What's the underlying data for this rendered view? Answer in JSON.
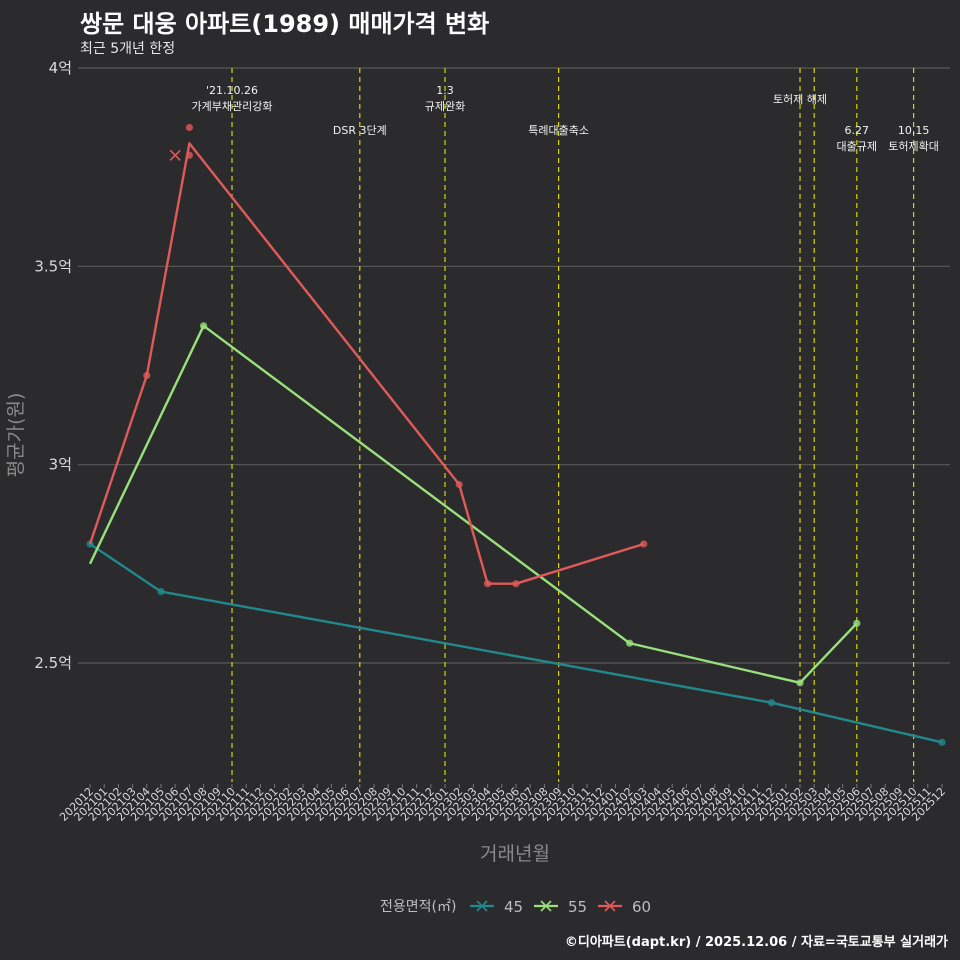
{
  "title": "쌍문 대웅 아파트(1989) 매매가격 변화",
  "subtitle": "최근 5개년 한정",
  "caption": "©디아파트(dapt.kr) / 2025.12.06 / 자료=국토교통부 실거래가",
  "chart_data": {
    "type": "line",
    "xlabel": "거래년월",
    "ylabel": "평균가(원)",
    "categories": [
      "202012",
      "202101",
      "202102",
      "202103",
      "202104",
      "202105",
      "202106",
      "202107",
      "202108",
      "202109",
      "202110",
      "202111",
      "202112",
      "202201",
      "202202",
      "202203",
      "202204",
      "202205",
      "202206",
      "202207",
      "202208",
      "202209",
      "202210",
      "202211",
      "202212",
      "202301",
      "202302",
      "202303",
      "202304",
      "202305",
      "202306",
      "202307",
      "202308",
      "202309",
      "202310",
      "202311",
      "202312",
      "202401",
      "202402",
      "202403",
      "202404",
      "202405",
      "202406",
      "202407",
      "202408",
      "202409",
      "202410",
      "202411",
      "202412",
      "202501",
      "202502",
      "202503",
      "202504",
      "202505",
      "202506",
      "202507",
      "202508",
      "202509",
      "202510",
      "202511",
      "202512"
    ],
    "ylim": [
      2.2,
      4.0
    ],
    "yticks": [
      {
        "value": 2.5,
        "label": "2.5억"
      },
      {
        "value": 3.0,
        "label": "3억"
      },
      {
        "value": 3.5,
        "label": "3.5억"
      },
      {
        "value": 4.0,
        "label": "4억"
      }
    ],
    "series": [
      {
        "name": "45",
        "color": "#21888c",
        "line": [
          [
            "202012",
            2.8
          ],
          [
            "202105",
            2.68
          ],
          [
            "202412",
            2.4
          ],
          [
            "202512",
            2.3
          ]
        ],
        "points": [
          [
            "202012",
            2.8
          ],
          [
            "202105",
            2.68
          ],
          [
            "202412",
            2.4
          ],
          [
            "202512",
            2.3
          ]
        ]
      },
      {
        "name": "55",
        "color": "#98e07a",
        "line": [
          [
            "202012",
            2.75
          ],
          [
            "202108",
            3.35
          ],
          [
            "202402",
            2.55
          ],
          [
            "202502",
            2.45
          ],
          [
            "202506",
            2.6
          ]
        ],
        "points": [
          [
            "202108",
            3.35
          ],
          [
            "202402",
            2.55
          ],
          [
            "202502",
            2.45
          ],
          [
            "202506",
            2.6
          ]
        ]
      },
      {
        "name": "60",
        "color": "#e05a5a",
        "line": [
          [
            "202012",
            2.8
          ],
          [
            "202104",
            3.225
          ],
          [
            "202107",
            3.81
          ],
          [
            "202302",
            2.95
          ],
          [
            "202304",
            2.7
          ],
          [
            "202306",
            2.7
          ],
          [
            "202403",
            2.8
          ]
        ],
        "points": [
          [
            "202104",
            3.225
          ],
          [
            "202107",
            3.85
          ],
          [
            "202107",
            3.78
          ],
          [
            "202302",
            2.95
          ],
          [
            "202304",
            2.7
          ],
          [
            "202306",
            2.7
          ],
          [
            "202403",
            2.8
          ]
        ],
        "cross_points": [
          [
            "202106",
            3.78
          ]
        ]
      }
    ],
    "annotations": [
      {
        "x": "202110",
        "lines": [
          "'21.10.26",
          "가계부채관리강화"
        ],
        "level": "top"
      },
      {
        "x": "202207",
        "lines": [
          "DSR 3단계"
        ],
        "level": "lower"
      },
      {
        "x": "202301",
        "lines": [
          "1.3",
          "규제완화"
        ],
        "level": "top"
      },
      {
        "x": "202309",
        "lines": [
          "특례대출축소"
        ],
        "level": "lower"
      },
      {
        "x": "202502",
        "lines": [
          "토허제 해제"
        ],
        "level": "mid"
      },
      {
        "x": "202503",
        "lines": [],
        "level": "none"
      },
      {
        "x": "202506",
        "lines": [
          "6.27",
          "대출규제"
        ],
        "level": "lower"
      },
      {
        "x": "202510",
        "lines": [
          "10.15",
          "토허제확대"
        ],
        "level": "lower"
      }
    ],
    "vline_color": "#d6d600",
    "legend": {
      "title": "전용면적(㎡)",
      "position": "bottom"
    }
  }
}
